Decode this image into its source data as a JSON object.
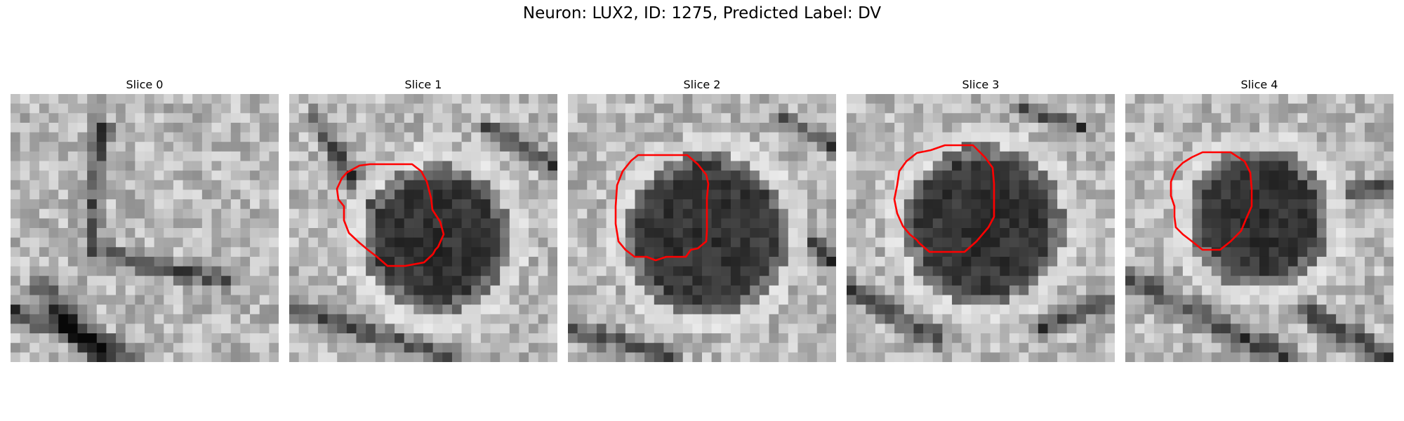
{
  "figure": {
    "title": "Neuron: LUX2, ID: 1275, Predicted Label: DV"
  },
  "colors": {
    "contour": "#ff0000",
    "background": "#ffffff"
  },
  "panels": [
    {
      "title": "Slice 0",
      "has_contour": false
    },
    {
      "title": "Slice 1",
      "has_contour": true
    },
    {
      "title": "Slice 2",
      "has_contour": true
    },
    {
      "title": "Slice 3",
      "has_contour": true
    },
    {
      "title": "Slice 4",
      "has_contour": true
    }
  ]
}
